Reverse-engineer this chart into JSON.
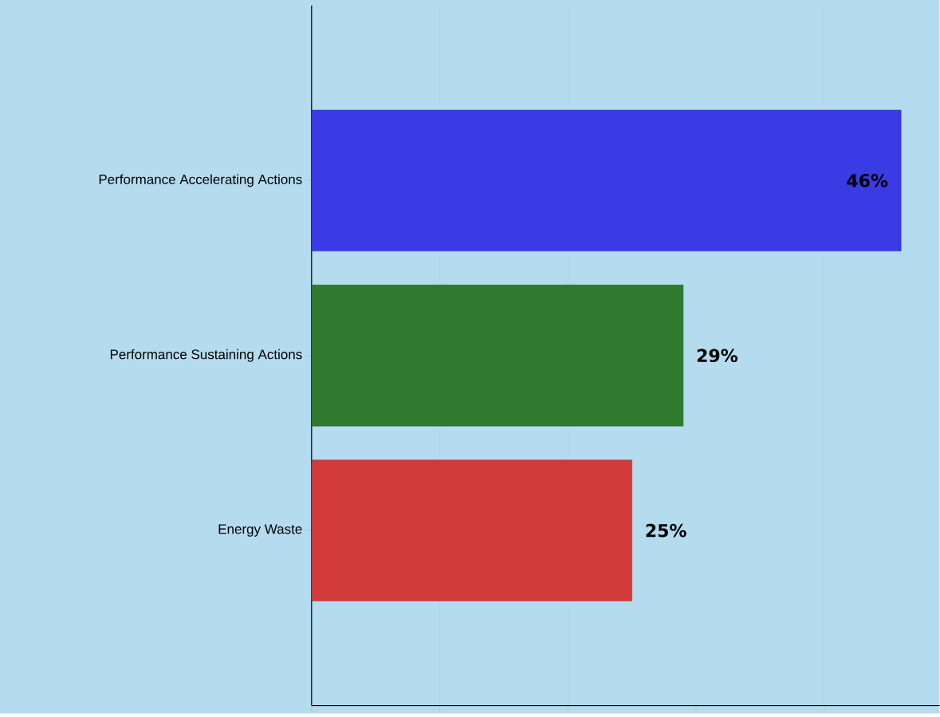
{
  "chart_data": {
    "type": "bar",
    "orientation": "horizontal",
    "categories": [
      "Performance Accelerating Actions",
      "Performance Sustaining Actions",
      "Energy Waste"
    ],
    "values": [
      46,
      29,
      25
    ],
    "value_labels": [
      "46%",
      "29%",
      "25%"
    ],
    "colors": [
      "#3b3be6",
      "#2f7a2f",
      "#d23a3a"
    ],
    "xlim": [
      0,
      49
    ],
    "xticks": [
      {
        "value": 0,
        "label": null
      },
      {
        "value": 10,
        "label": null
      },
      {
        "value": 20,
        "label": null
      },
      {
        "value": 30,
        "label": null
      },
      {
        "value": 40,
        "label": null
      }
    ],
    "tick_labels": "y",
    "grid": "x"
  }
}
